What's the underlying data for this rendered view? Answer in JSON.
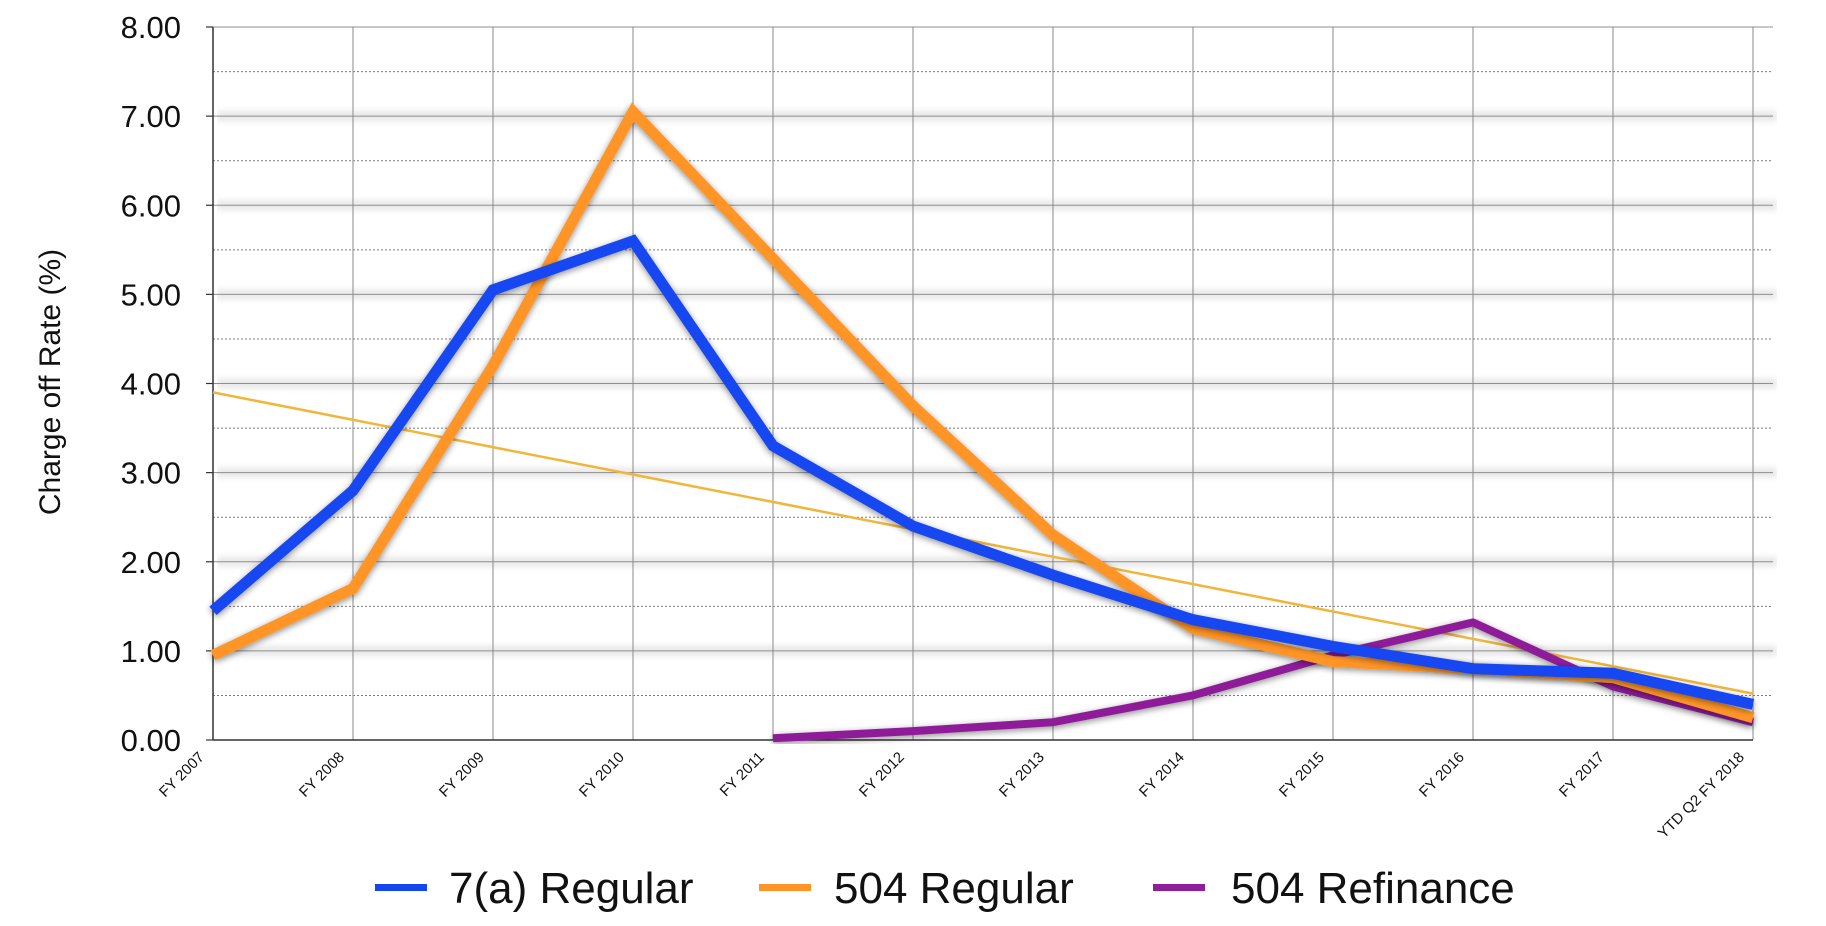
{
  "chart_data": {
    "type": "line",
    "title": "",
    "xlabel": "",
    "ylabel": "Charge off Rate (%)",
    "ylim": [
      0,
      8
    ],
    "yticks": [
      "0.00",
      "1.00",
      "2.00",
      "3.00",
      "4.00",
      "5.00",
      "6.00",
      "7.00",
      "8.00"
    ],
    "grid": "major and minor horizontal gridlines, vertical gridlines",
    "legend_position": "bottom",
    "categories": [
      "FY 2007",
      "FY 2008",
      "FY 2009",
      "FY 2010",
      "FY 2011",
      "FY 2012",
      "FY 2013",
      "FY 2014",
      "FY 2015",
      "FY 2016",
      "FY 2017",
      "YTD Q2 FY 2018"
    ],
    "series": [
      {
        "name": "7(a) Regular",
        "color": "#1446f0",
        "values": [
          1.45,
          2.8,
          5.05,
          5.6,
          3.3,
          2.4,
          1.85,
          1.35,
          1.05,
          0.8,
          0.75,
          0.4
        ]
      },
      {
        "name": "504 Regular",
        "color": "#ff9526",
        "values": [
          0.95,
          1.7,
          4.2,
          7.05,
          5.4,
          3.75,
          2.3,
          1.25,
          0.88,
          0.8,
          0.7,
          0.25
        ]
      },
      {
        "name": "504 Refinance",
        "color": "#8e1e99",
        "values": [
          null,
          null,
          null,
          null,
          0.02,
          0.1,
          0.2,
          0.5,
          0.95,
          1.32,
          0.6,
          0.2
        ]
      }
    ],
    "trendline": {
      "color": "#f2b53a",
      "start_value": 3.9,
      "end_value": 0.52
    }
  }
}
